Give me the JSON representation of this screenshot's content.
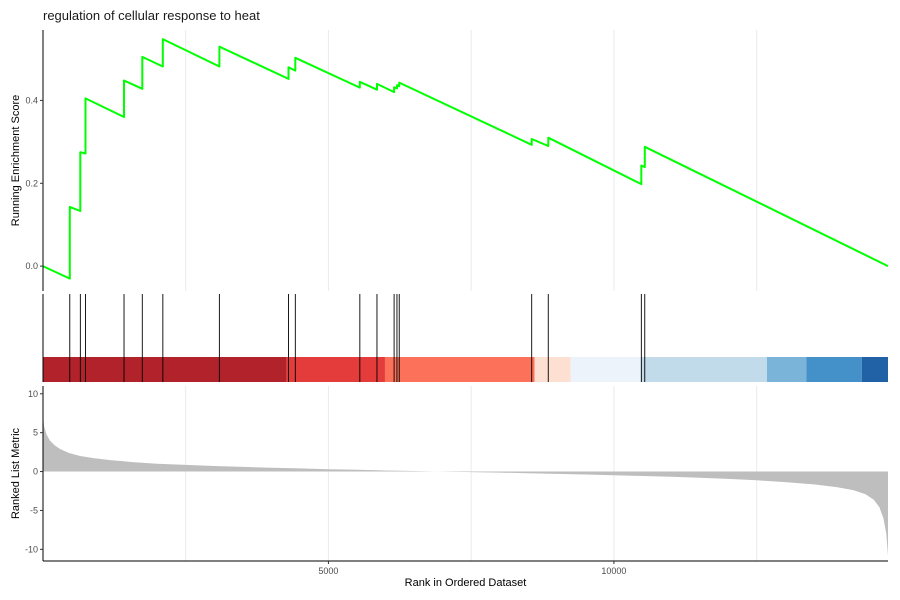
{
  "chart_data": {
    "type": "line",
    "title": "regulation of cellular response to heat",
    "xlabel": "Rank in Ordered Dataset",
    "xlim": [
      1,
      14800
    ],
    "x_ticks": [
      5000,
      10000
    ],
    "grid": "vertical",
    "running_score": {
      "ylabel": "Running Enrichment Score",
      "ylim": [
        -0.06,
        0.57
      ],
      "y_ticks": [
        0.0,
        0.2,
        0.4
      ],
      "color": "#00FF00",
      "hits": [
        470,
        655,
        745,
        1420,
        1740,
        2100,
        3090,
        4300,
        4420,
        5550,
        5850,
        6150,
        6200,
        6240,
        8560,
        8850,
        10480,
        10540
      ],
      "series": [
        {
          "x": 0,
          "y": 0.0
        },
        {
          "x": 470,
          "y": -0.03
        },
        {
          "x": 470,
          "y": 0.143
        },
        {
          "x": 655,
          "y": 0.133
        },
        {
          "x": 655,
          "y": 0.275
        },
        {
          "x": 745,
          "y": 0.272
        },
        {
          "x": 745,
          "y": 0.405
        },
        {
          "x": 1420,
          "y": 0.36
        },
        {
          "x": 1420,
          "y": 0.448
        },
        {
          "x": 1740,
          "y": 0.428
        },
        {
          "x": 1740,
          "y": 0.505
        },
        {
          "x": 2100,
          "y": 0.482
        },
        {
          "x": 2100,
          "y": 0.548
        },
        {
          "x": 3090,
          "y": 0.482
        },
        {
          "x": 3090,
          "y": 0.53
        },
        {
          "x": 4300,
          "y": 0.452
        },
        {
          "x": 4300,
          "y": 0.48
        },
        {
          "x": 4420,
          "y": 0.472
        },
        {
          "x": 4420,
          "y": 0.503
        },
        {
          "x": 5550,
          "y": 0.431
        },
        {
          "x": 5550,
          "y": 0.445
        },
        {
          "x": 5850,
          "y": 0.426
        },
        {
          "x": 5850,
          "y": 0.44
        },
        {
          "x": 6150,
          "y": 0.42
        },
        {
          "x": 6150,
          "y": 0.432
        },
        {
          "x": 6200,
          "y": 0.429
        },
        {
          "x": 6200,
          "y": 0.437
        },
        {
          "x": 6240,
          "y": 0.434
        },
        {
          "x": 6240,
          "y": 0.443
        },
        {
          "x": 8560,
          "y": 0.293
        },
        {
          "x": 8560,
          "y": 0.307
        },
        {
          "x": 8850,
          "y": 0.29
        },
        {
          "x": 8850,
          "y": 0.31
        },
        {
          "x": 10480,
          "y": 0.198
        },
        {
          "x": 10480,
          "y": 0.243
        },
        {
          "x": 10540,
          "y": 0.239
        },
        {
          "x": 10540,
          "y": 0.288
        },
        {
          "x": 14800,
          "y": 0.0
        }
      ]
    },
    "ranked_metric": {
      "ylabel": "Ranked List Metric",
      "ylim": [
        -11.5,
        11
      ],
      "y_ticks": [
        10,
        5,
        0,
        -5,
        -10
      ],
      "color": "#bebebe",
      "series": [
        {
          "x": 1,
          "y": 7.2
        },
        {
          "x": 20,
          "y": 5.8
        },
        {
          "x": 60,
          "y": 4.8
        },
        {
          "x": 120,
          "y": 4.0
        },
        {
          "x": 200,
          "y": 3.4
        },
        {
          "x": 300,
          "y": 2.9
        },
        {
          "x": 450,
          "y": 2.4
        },
        {
          "x": 650,
          "y": 2.0
        },
        {
          "x": 900,
          "y": 1.7
        },
        {
          "x": 1200,
          "y": 1.45
        },
        {
          "x": 1600,
          "y": 1.2
        },
        {
          "x": 2000,
          "y": 1.0
        },
        {
          "x": 2500,
          "y": 0.85
        },
        {
          "x": 3000,
          "y": 0.72
        },
        {
          "x": 3500,
          "y": 0.6
        },
        {
          "x": 4000,
          "y": 0.5
        },
        {
          "x": 4500,
          "y": 0.4
        },
        {
          "x": 5000,
          "y": 0.3
        },
        {
          "x": 5500,
          "y": 0.22
        },
        {
          "x": 6000,
          "y": 0.14
        },
        {
          "x": 6500,
          "y": 0.07
        },
        {
          "x": 7000,
          "y": 0.0
        },
        {
          "x": 7500,
          "y": -0.07
        },
        {
          "x": 8000,
          "y": -0.14
        },
        {
          "x": 8500,
          "y": -0.22
        },
        {
          "x": 9000,
          "y": -0.3
        },
        {
          "x": 9500,
          "y": -0.38
        },
        {
          "x": 10000,
          "y": -0.47
        },
        {
          "x": 10500,
          "y": -0.57
        },
        {
          "x": 11000,
          "y": -0.68
        },
        {
          "x": 11500,
          "y": -0.8
        },
        {
          "x": 12000,
          "y": -0.95
        },
        {
          "x": 12500,
          "y": -1.12
        },
        {
          "x": 13000,
          "y": -1.35
        },
        {
          "x": 13500,
          "y": -1.65
        },
        {
          "x": 13900,
          "y": -2.0
        },
        {
          "x": 14200,
          "y": -2.4
        },
        {
          "x": 14400,
          "y": -2.9
        },
        {
          "x": 14550,
          "y": -3.6
        },
        {
          "x": 14650,
          "y": -4.6
        },
        {
          "x": 14720,
          "y": -6.0
        },
        {
          "x": 14770,
          "y": -8.0
        },
        {
          "x": 14800,
          "y": -10.8
        }
      ]
    },
    "color_bands": [
      {
        "from": 0,
        "to": 4270,
        "color": "#B2222B"
      },
      {
        "from": 4270,
        "to": 5990,
        "color": "#E33C3A"
      },
      {
        "from": 5990,
        "to": 8610,
        "color": "#FC7159"
      },
      {
        "from": 8610,
        "to": 9240,
        "color": "#FDE0D2"
      },
      {
        "from": 9240,
        "to": 10470,
        "color": "#EDF3FB"
      },
      {
        "from": 10470,
        "to": 12680,
        "color": "#C2DBEA"
      },
      {
        "from": 12680,
        "to": 13370,
        "color": "#7BB4D9"
      },
      {
        "from": 13370,
        "to": 14340,
        "color": "#4490C8"
      },
      {
        "from": 14340,
        "to": 14800,
        "color": "#2161A6"
      }
    ]
  }
}
